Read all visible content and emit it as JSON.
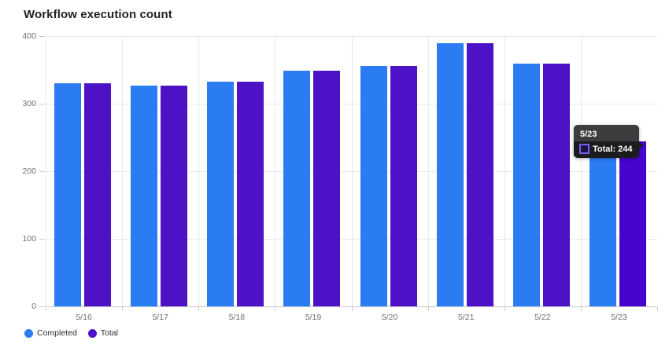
{
  "header": {
    "title": "Workflow execution count"
  },
  "chart_data": {
    "type": "bar",
    "title": "Workflow execution count",
    "categories": [
      "5/16",
      "5/17",
      "5/18",
      "5/19",
      "5/20",
      "5/21",
      "5/22",
      "5/23"
    ],
    "series": [
      {
        "name": "Completed",
        "color": "#2b7bf3",
        "values": [
          330,
          327,
          333,
          349,
          356,
          390,
          359,
          240
        ]
      },
      {
        "name": "Total",
        "color": "#4d11c6",
        "hover_color": "#4505ce",
        "values": [
          330,
          327,
          333,
          349,
          356,
          390,
          359,
          244
        ]
      }
    ],
    "xlabel": "",
    "ylabel": "",
    "ylim": [
      0,
      400
    ],
    "yticks": [
      0,
      100,
      200,
      300,
      400
    ],
    "grid": true,
    "legend_position": "bottom-left"
  },
  "tooltip": {
    "category": "5/23",
    "title": "5/23",
    "series": "Total",
    "value": 244,
    "label": "Total: 244",
    "marker_border": "#7b5cf5"
  },
  "legend": {
    "items": [
      {
        "label": "Completed",
        "color": "#2b7bf3"
      },
      {
        "label": "Total",
        "color": "#4d11c6"
      }
    ]
  }
}
